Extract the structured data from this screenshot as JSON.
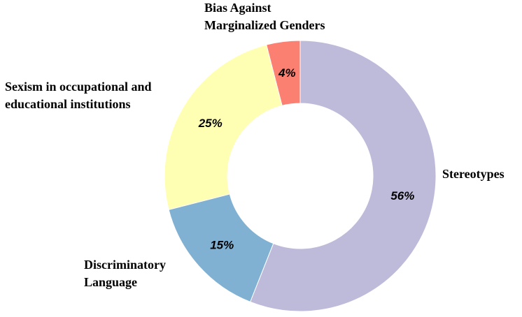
{
  "chart_data": {
    "type": "donut",
    "categories": [
      [
        "Stereotypes"
      ],
      [
        "Discriminatory",
        "Language"
      ],
      [
        "Sexism in occupational and",
        "educational institutions"
      ],
      [
        "Bias Against",
        "Marginalized  Genders"
      ]
    ],
    "values": [
      56,
      15,
      25,
      4
    ],
    "value_labels": [
      "56%",
      "15%",
      "25%",
      "4%"
    ],
    "colors": [
      "#bebada",
      "#80b1d3",
      "#ffffb3",
      "#fb8072"
    ]
  }
}
